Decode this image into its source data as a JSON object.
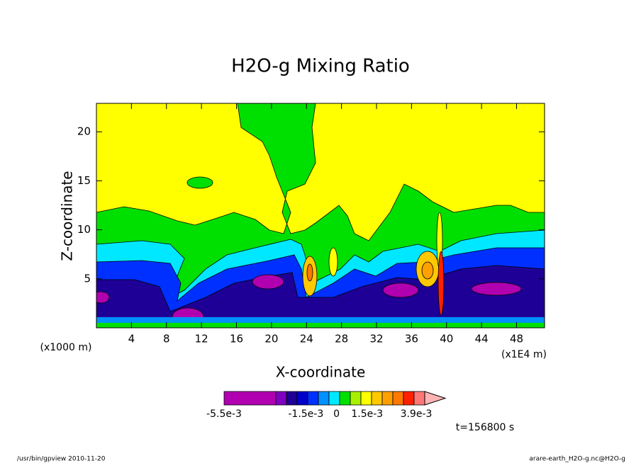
{
  "chart_data": {
    "type": "contour",
    "title": "H2O-g Mixing Ratio",
    "xlabel": "X-coordinate",
    "ylabel": "Z-coordinate",
    "x_unit": "(x1E4 m)",
    "y_unit": "(x1000 m)",
    "xlim": [
      0,
      51.2
    ],
    "ylim": [
      0,
      22.9
    ],
    "xticks": [
      4,
      8,
      12,
      16,
      20,
      24,
      28,
      32,
      36,
      40,
      44,
      48
    ],
    "yticks": [
      5,
      10,
      15,
      20
    ],
    "colorbar": {
      "colors": [
        "#b000b0",
        "#8000c0",
        "#1e0096",
        "#0000c8",
        "#0030ff",
        "#0090ff",
        "#00e8ff",
        "#00e000",
        "#a8f000",
        "#ffff00",
        "#ffc800",
        "#ffa000",
        "#ff7800",
        "#ff2000",
        "#ff7878",
        "#ffb4b4"
      ],
      "lim": [
        -0.0055,
        0.0039
      ],
      "ticks": [
        {
          "value": -0.0055,
          "label": "-5.5e-3"
        },
        {
          "value": -0.0015,
          "label": "-1.5e-3"
        },
        0,
        {
          "value": 0.0015,
          "label": "1.5e-3"
        },
        {
          "value": 0.0039,
          "label": "3.9e-3"
        }
      ]
    },
    "annotation": "t=156800 s"
  },
  "footer": {
    "left": "/usr/bin/gpview  2010-11-20",
    "right": "arare-earth_H2O-g.nc@H2O-g"
  }
}
